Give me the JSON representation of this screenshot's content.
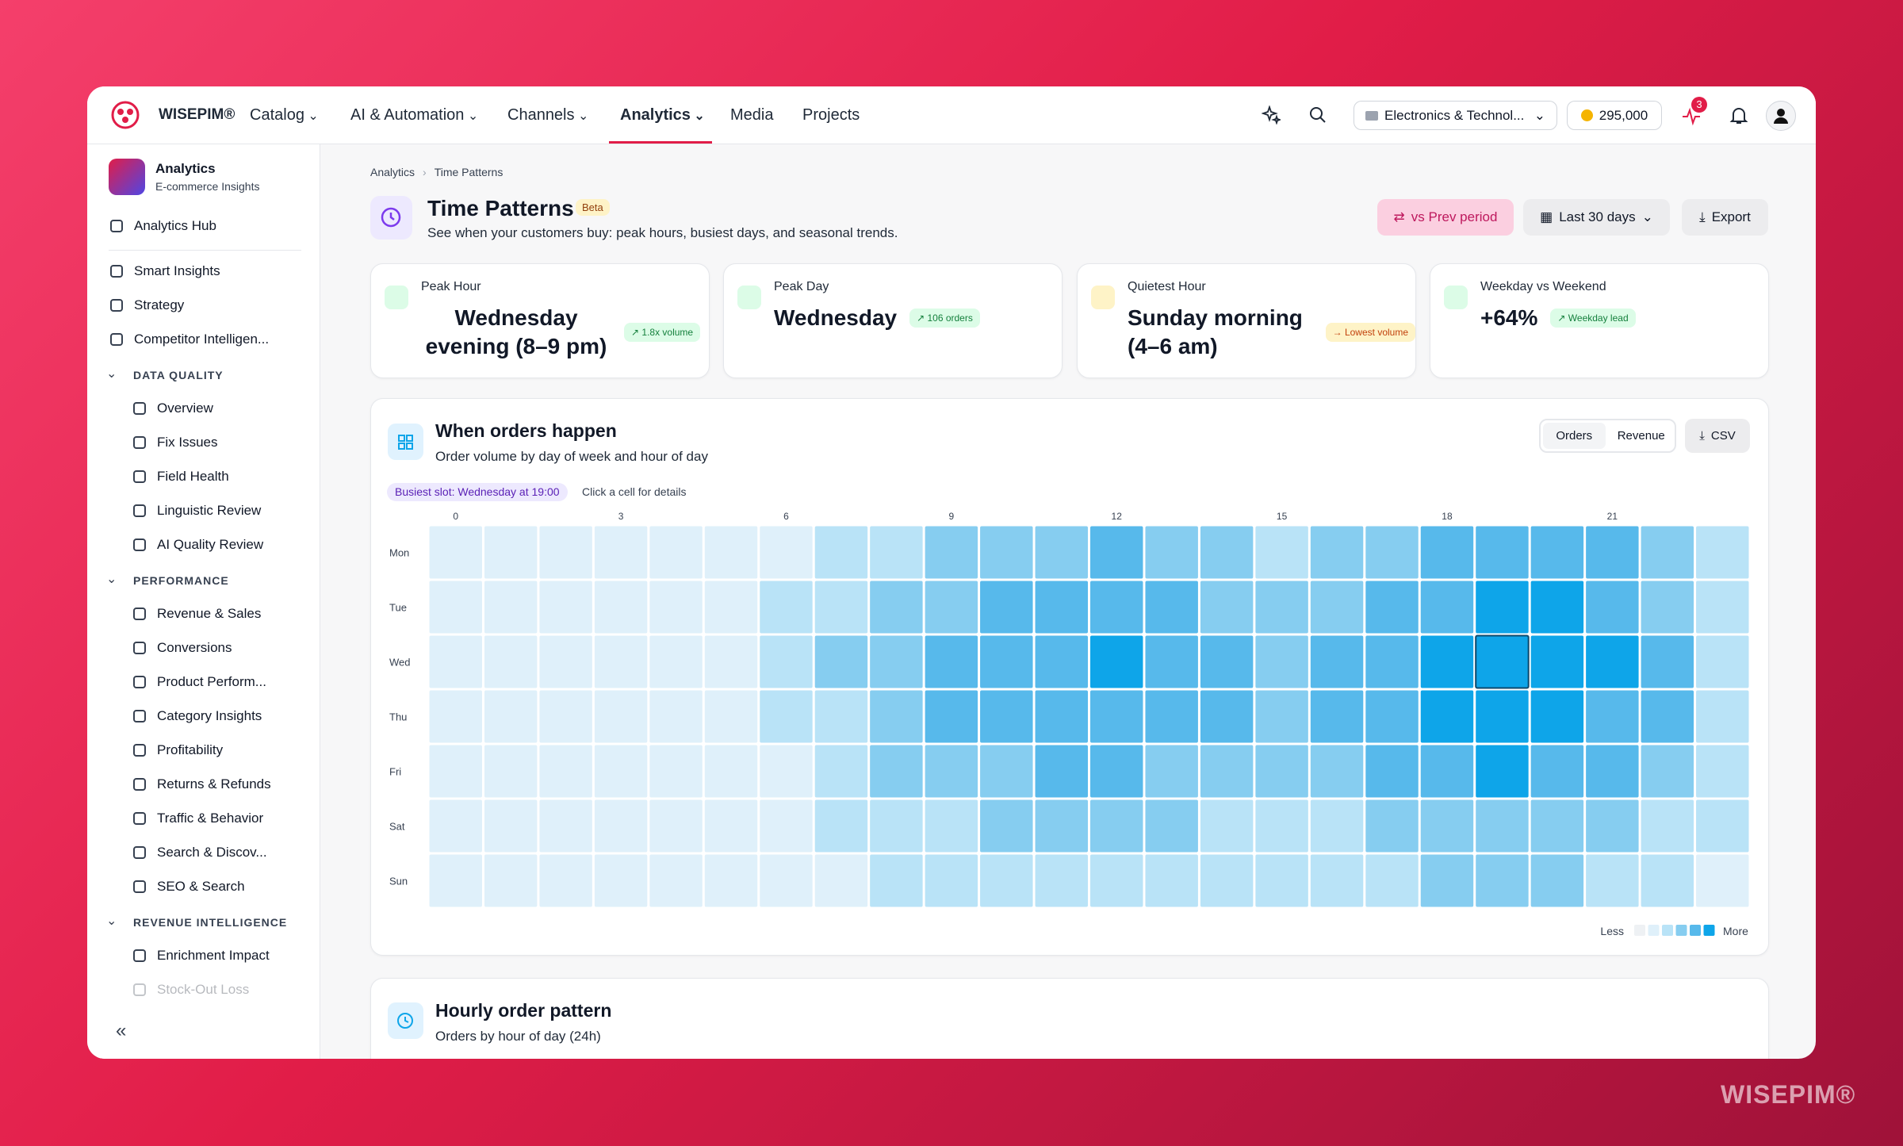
{
  "nav": {
    "brand": "WISEPIM®",
    "items": [
      "Catalog",
      "AI & Automation",
      "Channels",
      "Analytics",
      "Media",
      "Projects"
    ],
    "dropdown_items": [
      true,
      true,
      true,
      true,
      false,
      false
    ],
    "active_index": 3,
    "workspace": "Electronics & Technol...",
    "credits": "295,000",
    "notifications": "3"
  },
  "sidebar": {
    "title": "Analytics",
    "subtitle": "E-commerce Insights",
    "hub": "Analytics Hub",
    "sections": [
      {
        "items": [
          "Smart Insights",
          "Strategy",
          "Competitor Intelligen..."
        ]
      },
      {
        "heading": "DATA QUALITY",
        "items": [
          "Overview",
          "Fix Issues",
          "Field Health",
          "Linguistic Review",
          "AI Quality Review"
        ]
      },
      {
        "heading": "PERFORMANCE",
        "items": [
          "Revenue & Sales",
          "Conversions",
          "Product Perform...",
          "Category Insights",
          "Profitability",
          "Returns & Refunds",
          "Traffic & Behavior",
          "Search & Discov...",
          "SEO & Search"
        ]
      },
      {
        "heading": "REVENUE INTELLIGENCE",
        "items": [
          "Enrichment Impact",
          "Stock-Out Loss"
        ]
      }
    ],
    "collapse": "«"
  },
  "page": {
    "breadcrumb": [
      "Analytics",
      "Time Patterns"
    ],
    "title": "Time Patterns",
    "badge": "Beta",
    "subtitle": "See when your customers buy: peak hours, busiest days, and seasonal trends.",
    "compare": "vs Prev period",
    "range": "Last 30 days",
    "export": "Export"
  },
  "kpis": [
    {
      "label": "Peak Hour",
      "value": "Wednesday evening (8–9 pm)",
      "badge": "↗ 1.8x volume",
      "tone": "green"
    },
    {
      "label": "Peak Day",
      "value": "Wednesday",
      "badge": "↗ 106 orders",
      "tone": "green"
    },
    {
      "label": "Quietest Hour",
      "value": "Sunday morning (4–6 am)",
      "badge": "→ Lowest volume",
      "tone": "orange"
    },
    {
      "label": "Weekday vs Weekend",
      "value": "+64%",
      "badge": "↗ Weekday lead",
      "tone": "green"
    }
  ],
  "heatmap": {
    "type": "heatmap",
    "title": "When orders happen",
    "subtitle": "Order volume by day of week and hour of day",
    "toggle": [
      "Orders",
      "Revenue"
    ],
    "csv": "CSV",
    "busiest": "Busiest slot: Wednesday at 19:00",
    "hint": "Click a cell for details",
    "days": [
      "Mon",
      "Tue",
      "Wed",
      "Thu",
      "Fri",
      "Sat",
      "Sun"
    ],
    "hour_labels": [
      0,
      3,
      6,
      9,
      12,
      15,
      18,
      21
    ],
    "colors": [
      "#eef1f4",
      "#dff0fa",
      "#b9e3f7",
      "#86cdf0",
      "#57b9eb",
      "#0ea5e9"
    ],
    "values": [
      [
        1,
        1,
        1,
        1,
        1,
        1,
        1,
        2,
        2,
        3,
        3,
        3,
        4,
        3,
        3,
        2,
        3,
        3,
        4,
        4,
        4,
        4,
        3,
        2
      ],
      [
        1,
        1,
        1,
        1,
        1,
        1,
        2,
        2,
        3,
        3,
        4,
        4,
        4,
        4,
        3,
        3,
        3,
        4,
        4,
        5,
        5,
        4,
        3,
        2
      ],
      [
        1,
        1,
        1,
        1,
        1,
        1,
        2,
        3,
        3,
        4,
        4,
        4,
        5,
        4,
        4,
        3,
        4,
        4,
        5,
        5,
        5,
        5,
        4,
        2
      ],
      [
        1,
        1,
        1,
        1,
        1,
        1,
        2,
        2,
        3,
        4,
        4,
        4,
        4,
        4,
        4,
        3,
        4,
        4,
        5,
        5,
        5,
        4,
        4,
        2
      ],
      [
        1,
        1,
        1,
        1,
        1,
        1,
        1,
        2,
        3,
        3,
        3,
        4,
        4,
        3,
        3,
        3,
        3,
        4,
        4,
        5,
        4,
        4,
        3,
        2
      ],
      [
        1,
        1,
        1,
        1,
        1,
        1,
        1,
        2,
        2,
        2,
        3,
        3,
        3,
        3,
        2,
        2,
        2,
        3,
        3,
        3,
        3,
        3,
        2,
        2
      ],
      [
        1,
        1,
        1,
        1,
        1,
        1,
        1,
        1,
        2,
        2,
        2,
        2,
        2,
        2,
        2,
        2,
        2,
        2,
        3,
        3,
        3,
        2,
        2,
        1
      ]
    ],
    "selected": [
      2,
      19
    ],
    "legend_less": "Less",
    "legend_more": "More"
  },
  "hourly": {
    "title": "Hourly order pattern",
    "subtitle": "Orders by hour of day (24h)"
  },
  "watermark": "WISEPIM®"
}
